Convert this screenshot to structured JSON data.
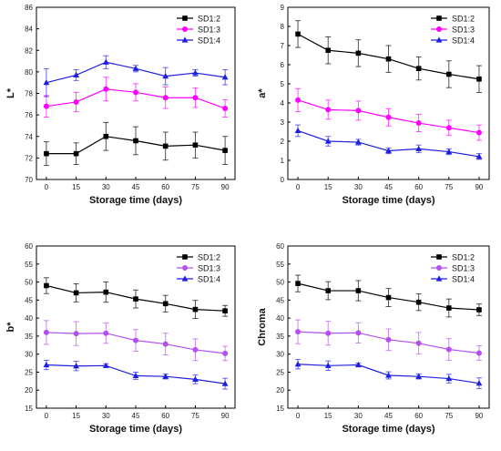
{
  "chart_data": [
    {
      "type": "line",
      "xlabel": "Storage time (days)",
      "ylabel": "L*",
      "x": [
        0,
        15,
        30,
        45,
        60,
        75,
        90
      ],
      "xticks": [
        "0",
        "15",
        "30",
        "45",
        "60",
        "75",
        "90"
      ],
      "ylim": [
        70,
        86
      ],
      "yticks": [
        "70",
        "72",
        "74",
        "76",
        "78",
        "80",
        "82",
        "84",
        "86"
      ],
      "legend_position": "top-right",
      "grid": false,
      "series": [
        {
          "name": "SD1:2",
          "color": "#000000",
          "marker": "square",
          "values": [
            72.4,
            72.4,
            74.0,
            73.6,
            73.1,
            73.2,
            72.7
          ],
          "error": [
            1.1,
            1.0,
            1.3,
            1.3,
            1.3,
            1.2,
            1.3
          ]
        },
        {
          "name": "SD1:3",
          "color": "#ff00ff",
          "marker": "circle",
          "values": [
            76.8,
            77.2,
            78.4,
            78.1,
            77.6,
            77.6,
            76.6
          ],
          "error": [
            1.0,
            0.9,
            1.1,
            0.8,
            1.0,
            0.9,
            0.8
          ]
        },
        {
          "name": "SD1:4",
          "color": "#1f1fe0",
          "marker": "triangle",
          "values": [
            79.0,
            79.7,
            80.9,
            80.3,
            79.6,
            79.9,
            79.5
          ],
          "error": [
            1.3,
            0.5,
            0.6,
            0.3,
            0.8,
            0.3,
            0.7
          ]
        }
      ]
    },
    {
      "type": "line",
      "xlabel": "Storage time (days)",
      "ylabel": "a*",
      "x": [
        0,
        15,
        30,
        45,
        60,
        75,
        90
      ],
      "xticks": [
        "0",
        "15",
        "30",
        "45",
        "60",
        "75",
        "90"
      ],
      "ylim": [
        0,
        9
      ],
      "yticks": [
        "0",
        "1",
        "2",
        "3",
        "4",
        "5",
        "6",
        "7",
        "8",
        "9"
      ],
      "legend_position": "top-right",
      "grid": false,
      "series": [
        {
          "name": "SD1:2",
          "color": "#000000",
          "marker": "square",
          "values": [
            7.6,
            6.75,
            6.6,
            6.3,
            5.8,
            5.5,
            5.25
          ],
          "error": [
            0.7,
            0.7,
            0.7,
            0.7,
            0.6,
            0.7,
            0.7
          ]
        },
        {
          "name": "SD1:3",
          "color": "#ff00ff",
          "marker": "circle",
          "values": [
            4.15,
            3.65,
            3.6,
            3.25,
            2.95,
            2.7,
            2.45
          ],
          "error": [
            0.6,
            0.5,
            0.5,
            0.45,
            0.45,
            0.4,
            0.4
          ]
        },
        {
          "name": "SD1:4",
          "color": "#1f1fe0",
          "marker": "triangle",
          "values": [
            2.55,
            2.0,
            1.95,
            1.5,
            1.6,
            1.45,
            1.2
          ],
          "error": [
            0.3,
            0.25,
            0.15,
            0.15,
            0.2,
            0.15,
            0.15
          ]
        }
      ]
    },
    {
      "type": "line",
      "xlabel": "Storage time (days)",
      "ylabel": "b*",
      "x": [
        0,
        15,
        30,
        45,
        60,
        75,
        90
      ],
      "xticks": [
        "0",
        "15",
        "30",
        "45",
        "60",
        "75",
        "90"
      ],
      "ylim": [
        15,
        60
      ],
      "yticks": [
        "15",
        "20",
        "25",
        "30",
        "35",
        "40",
        "45",
        "50",
        "55",
        "60"
      ],
      "legend_position": "top-right",
      "grid": false,
      "series": [
        {
          "name": "SD1:2",
          "color": "#000000",
          "marker": "square",
          "values": [
            49.0,
            47.0,
            47.2,
            45.3,
            44.0,
            42.4,
            42.0
          ],
          "error": [
            2.2,
            2.5,
            2.8,
            2.5,
            2.3,
            2.5,
            1.5
          ]
        },
        {
          "name": "SD1:3",
          "color": "#b44ff0",
          "marker": "circle",
          "values": [
            36.0,
            35.7,
            35.8,
            33.8,
            32.8,
            31.2,
            30.2
          ],
          "error": [
            3.3,
            3.3,
            2.8,
            3.0,
            3.0,
            3.0,
            2.0
          ]
        },
        {
          "name": "SD1:4",
          "color": "#1f1fe0",
          "marker": "triangle",
          "values": [
            27.0,
            26.7,
            26.8,
            24.0,
            23.8,
            23.0,
            21.8
          ],
          "error": [
            1.3,
            1.3,
            0.5,
            1.0,
            0.7,
            1.2,
            1.5
          ]
        }
      ]
    },
    {
      "type": "line",
      "xlabel": "Storage time (days)",
      "ylabel": "Chroma",
      "x": [
        0,
        15,
        30,
        45,
        60,
        75,
        90
      ],
      "xticks": [
        "0",
        "15",
        "30",
        "45",
        "60",
        "75",
        "90"
      ],
      "ylim": [
        15,
        60
      ],
      "yticks": [
        "15",
        "20",
        "25",
        "30",
        "35",
        "40",
        "45",
        "50",
        "55",
        "60"
      ],
      "legend_position": "top-right",
      "grid": false,
      "series": [
        {
          "name": "SD1:2",
          "color": "#000000",
          "marker": "square",
          "values": [
            49.6,
            47.6,
            47.6,
            45.7,
            44.4,
            42.8,
            42.3
          ],
          "error": [
            2.3,
            2.5,
            2.8,
            2.5,
            2.3,
            2.5,
            1.6
          ]
        },
        {
          "name": "SD1:3",
          "color": "#b44ff0",
          "marker": "circle",
          "values": [
            36.2,
            35.8,
            35.9,
            34.0,
            33.0,
            31.3,
            30.3
          ],
          "error": [
            3.3,
            3.3,
            2.8,
            3.0,
            3.0,
            3.0,
            2.0
          ]
        },
        {
          "name": "SD1:4",
          "color": "#1f1fe0",
          "marker": "triangle",
          "values": [
            27.2,
            26.8,
            27.0,
            24.1,
            23.8,
            23.2,
            21.9
          ],
          "error": [
            1.3,
            1.3,
            0.5,
            1.0,
            0.7,
            1.2,
            1.5
          ]
        }
      ]
    }
  ]
}
